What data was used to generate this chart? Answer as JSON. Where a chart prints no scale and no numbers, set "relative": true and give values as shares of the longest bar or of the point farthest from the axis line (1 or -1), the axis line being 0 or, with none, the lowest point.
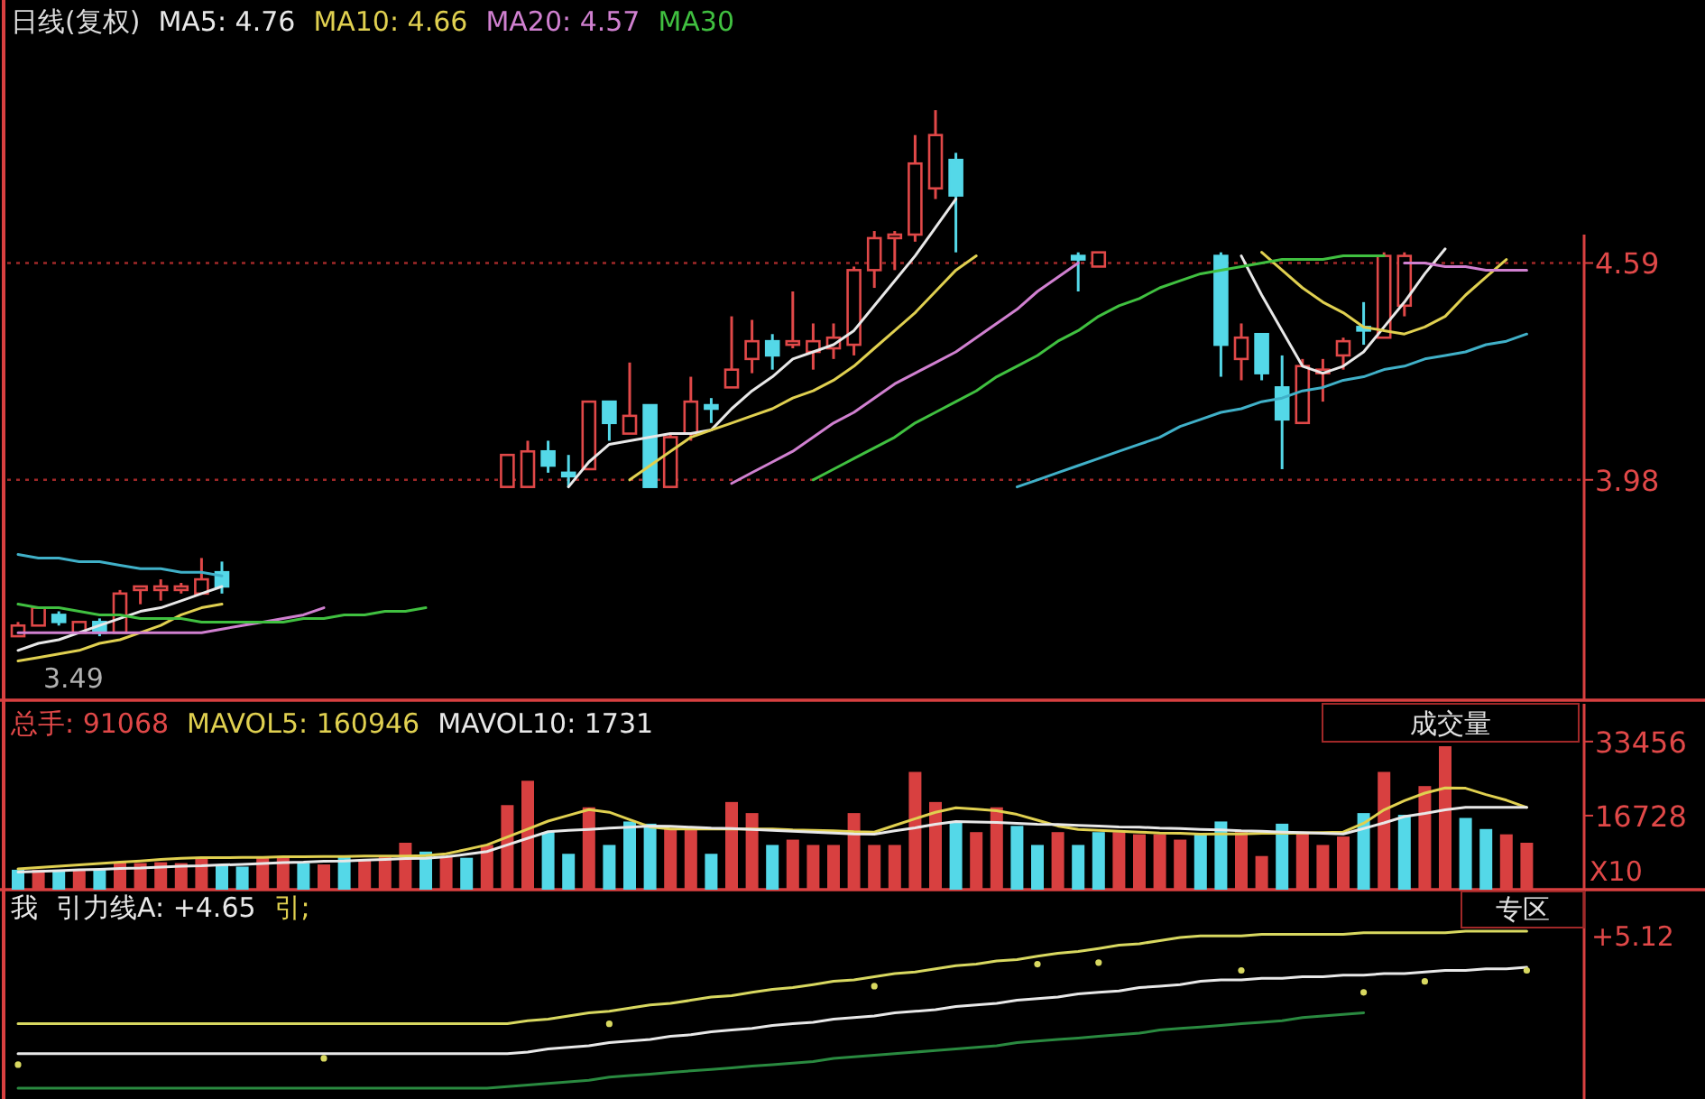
{
  "chart_data": [
    {
      "type": "candlestick",
      "title": "日线(复权)",
      "legend": "top left",
      "grid": "y",
      "ylim": [
        3.36,
        5.33
      ],
      "yticks": [
        3.98,
        4.59
      ],
      "annotations": [
        "3.49"
      ],
      "categories": [
        null,
        null,
        null,
        null,
        null,
        null,
        null,
        null,
        null,
        null,
        null,
        null,
        null,
        null,
        null,
        null,
        null,
        null,
        null,
        null,
        null,
        null,
        null,
        null,
        null,
        null,
        null,
        null,
        null,
        null,
        null,
        null,
        null,
        null,
        null,
        null,
        null,
        null,
        null,
        null,
        null,
        null,
        null,
        null,
        null,
        null,
        null,
        null,
        null,
        null,
        null,
        null,
        null,
        null,
        null,
        null,
        null,
        null,
        null,
        null,
        null,
        null,
        null,
        null,
        null,
        null,
        null,
        null,
        null,
        null,
        null,
        null,
        null,
        null,
        null
      ],
      "ohlc": [
        [
          3.54,
          3.58,
          3.54,
          3.57
        ],
        [
          3.57,
          3.62,
          3.57,
          3.62
        ],
        [
          3.6,
          3.61,
          3.57,
          3.58
        ],
        [
          3.55,
          3.58,
          3.55,
          3.58
        ],
        [
          3.58,
          3.59,
          3.54,
          3.55
        ],
        [
          3.55,
          3.67,
          3.55,
          3.66
        ],
        [
          3.67,
          3.68,
          3.63,
          3.68
        ],
        [
          3.67,
          3.7,
          3.64,
          3.68
        ],
        [
          3.67,
          3.69,
          3.66,
          3.68
        ],
        [
          3.66,
          3.76,
          3.66,
          3.7
        ],
        [
          3.72,
          3.75,
          3.66,
          3.68
        ],
        null,
        null,
        null,
        null,
        null,
        null,
        null,
        null,
        null,
        null,
        null,
        null,
        null,
        [
          3.96,
          4.05,
          3.96,
          4.05
        ],
        [
          3.96,
          4.09,
          3.96,
          4.06
        ],
        [
          4.06,
          4.09,
          4.0,
          4.02
        ],
        [
          4.0,
          4.05,
          3.96,
          3.99
        ],
        [
          4.01,
          4.2,
          4.01,
          4.2
        ],
        [
          4.2,
          4.2,
          4.09,
          4.14
        ],
        [
          4.11,
          4.31,
          4.11,
          4.16
        ],
        [
          4.19,
          4.19,
          3.96,
          3.96
        ],
        [
          3.96,
          4.11,
          3.96,
          4.1
        ],
        [
          4.11,
          4.27,
          4.09,
          4.2
        ],
        [
          4.19,
          4.21,
          4.14,
          4.18
        ],
        [
          4.24,
          4.44,
          4.24,
          4.29
        ],
        [
          4.32,
          4.43,
          4.28,
          4.37
        ],
        [
          4.37,
          4.39,
          4.29,
          4.33
        ],
        [
          4.36,
          4.51,
          4.35,
          4.37
        ],
        [
          4.34,
          4.42,
          4.29,
          4.37
        ],
        [
          4.35,
          4.42,
          4.32,
          4.38
        ],
        [
          4.36,
          4.58,
          4.33,
          4.57
        ],
        [
          4.57,
          4.68,
          4.52,
          4.66
        ],
        [
          4.66,
          4.68,
          4.57,
          4.67
        ],
        [
          4.67,
          4.95,
          4.65,
          4.87
        ],
        [
          4.8,
          5.02,
          4.77,
          4.95
        ],
        [
          4.88,
          4.9,
          4.62,
          4.78
        ],
        null,
        null,
        null,
        null,
        null,
        [
          4.61,
          4.62,
          4.51,
          4.6
        ],
        [
          4.58,
          4.62,
          4.58,
          4.62
        ],
        null,
        null,
        null,
        null,
        null,
        [
          4.61,
          4.62,
          4.27,
          4.36
        ],
        [
          4.32,
          4.42,
          4.26,
          4.38
        ],
        [
          4.39,
          4.39,
          4.26,
          4.28
        ],
        [
          4.24,
          4.33,
          4.01,
          4.15
        ],
        [
          4.14,
          4.32,
          4.14,
          4.3
        ],
        [
          4.28,
          4.32,
          4.2,
          4.29
        ],
        [
          4.33,
          4.38,
          4.29,
          4.37
        ],
        [
          4.41,
          4.48,
          4.36,
          4.4
        ],
        [
          4.38,
          4.62,
          4.38,
          4.61
        ],
        [
          4.47,
          4.62,
          4.44,
          4.61
        ],
        null,
        null,
        null,
        null,
        null,
        null
      ],
      "series": [
        {
          "name": "MA5: 4.76",
          "type": "line",
          "color": "#e8e8e8",
          "values": [
            3.5,
            3.52,
            3.53,
            3.55,
            3.57,
            3.59,
            3.61,
            3.62,
            3.64,
            3.66,
            3.68,
            null,
            null,
            null,
            null,
            null,
            null,
            null,
            null,
            null,
            null,
            null,
            null,
            null,
            null,
            null,
            null,
            3.96,
            4.03,
            4.08,
            4.09,
            4.1,
            4.11,
            4.11,
            4.12,
            4.18,
            4.23,
            4.27,
            4.32,
            4.34,
            4.36,
            4.4,
            4.47,
            4.54,
            4.61,
            4.69,
            4.77,
            null,
            null,
            null,
            null,
            null,
            null,
            null,
            null,
            null,
            null,
            null,
            null,
            null,
            4.61,
            4.5,
            4.4,
            4.3,
            4.28,
            4.3,
            4.34,
            4.41,
            4.48,
            4.56,
            4.63,
            null,
            null,
            null,
            null
          ]
        },
        {
          "name": "MA10: 4.66",
          "type": "line",
          "color": "#e0d050",
          "values": [
            3.47,
            3.48,
            3.49,
            3.5,
            3.52,
            3.53,
            3.55,
            3.57,
            3.6,
            3.62,
            3.63,
            null,
            null,
            null,
            null,
            null,
            null,
            null,
            null,
            null,
            null,
            null,
            null,
            null,
            null,
            null,
            null,
            null,
            null,
            null,
            3.98,
            4.02,
            4.06,
            4.1,
            4.12,
            4.14,
            4.16,
            4.18,
            4.21,
            4.23,
            4.26,
            4.3,
            4.35,
            4.4,
            4.45,
            4.51,
            4.57,
            4.61,
            null,
            null,
            null,
            null,
            null,
            null,
            null,
            null,
            null,
            null,
            null,
            null,
            null,
            4.62,
            4.57,
            4.52,
            4.48,
            4.45,
            4.41,
            4.4,
            4.39,
            4.41,
            4.44,
            4.5,
            4.55,
            4.6,
            null
          ]
        },
        {
          "name": "MA20: 4.57",
          "type": "line",
          "color": "#d080d0",
          "values": [
            3.55,
            3.55,
            3.55,
            3.55,
            3.55,
            3.55,
            3.55,
            3.55,
            3.55,
            3.55,
            3.56,
            3.57,
            3.58,
            3.59,
            3.6,
            3.62,
            null,
            null,
            null,
            null,
            null,
            null,
            null,
            null,
            null,
            null,
            null,
            null,
            null,
            null,
            null,
            null,
            null,
            null,
            null,
            3.97,
            4.0,
            4.03,
            4.06,
            4.1,
            4.14,
            4.17,
            4.21,
            4.25,
            4.28,
            4.31,
            4.34,
            4.38,
            4.42,
            4.46,
            4.51,
            4.55,
            4.59,
            null,
            null,
            null,
            null,
            null,
            null,
            null,
            null,
            null,
            null,
            null,
            null,
            null,
            null,
            null,
            4.59,
            4.59,
            4.58,
            4.58,
            4.57,
            4.57,
            4.57
          ]
        },
        {
          "name": "MA30",
          "type": "line",
          "color": "#40c040",
          "values": [
            3.63,
            3.62,
            3.62,
            3.61,
            3.6,
            3.6,
            3.59,
            3.59,
            3.59,
            3.58,
            3.58,
            3.58,
            3.58,
            3.58,
            3.59,
            3.59,
            3.6,
            3.6,
            3.61,
            3.61,
            3.62,
            null,
            null,
            null,
            null,
            null,
            null,
            null,
            null,
            null,
            null,
            null,
            null,
            null,
            null,
            null,
            null,
            null,
            null,
            3.98,
            4.01,
            4.04,
            4.07,
            4.1,
            4.14,
            4.17,
            4.2,
            4.23,
            4.27,
            4.3,
            4.33,
            4.37,
            4.4,
            4.44,
            4.47,
            4.49,
            4.52,
            4.54,
            4.56,
            4.57,
            4.58,
            4.59,
            4.6,
            4.6,
            4.6,
            4.61,
            4.61,
            4.61,
            null,
            null,
            null,
            null,
            null,
            null,
            null
          ]
        },
        {
          "type": "line",
          "color": "#40b0c8",
          "values": [
            3.77,
            3.76,
            3.76,
            3.75,
            3.75,
            3.74,
            3.73,
            3.73,
            3.72,
            3.72,
            3.71,
            null,
            null,
            null,
            null,
            null,
            null,
            null,
            null,
            null,
            null,
            null,
            null,
            null,
            null,
            null,
            null,
            null,
            null,
            null,
            null,
            null,
            null,
            null,
            null,
            null,
            null,
            null,
            null,
            null,
            null,
            null,
            null,
            null,
            null,
            null,
            null,
            null,
            null,
            3.96,
            3.98,
            4.0,
            4.02,
            4.04,
            4.06,
            4.08,
            4.1,
            4.13,
            4.15,
            4.17,
            4.18,
            4.2,
            4.21,
            4.23,
            4.24,
            4.26,
            4.27,
            4.29,
            4.3,
            4.32,
            4.33,
            4.34,
            4.36,
            4.37,
            4.39
          ]
        }
      ]
    },
    {
      "type": "bar",
      "legend": "top left",
      "ylim": [
        0,
        42800
      ],
      "yticks": [
        16728,
        33456
      ],
      "annotations": [
        "总手: 91068",
        "成交量",
        "X10"
      ],
      "categories": [
        null,
        null,
        null,
        null,
        null,
        null,
        null,
        null,
        null,
        null,
        null,
        null,
        null,
        null,
        null,
        null,
        null,
        null,
        null,
        null,
        null,
        null,
        null,
        null,
        null,
        null,
        null,
        null,
        null,
        null,
        null,
        null,
        null,
        null,
        null,
        null,
        null,
        null,
        null,
        null,
        null,
        null,
        null,
        null,
        null,
        null,
        null,
        null,
        null,
        null,
        null,
        null,
        null,
        null,
        null,
        null,
        null,
        null,
        null,
        null,
        null,
        null,
        null,
        null,
        null,
        null,
        null,
        null,
        null,
        null,
        null,
        null,
        null,
        null,
        null
      ],
      "series": [
        {
          "values": [
            4500,
            4500,
            4500,
            4500,
            4500,
            6200,
            6000,
            6200,
            6000,
            7200,
            5700,
            5200,
            7200,
            7200,
            6000,
            5700,
            7600,
            6700,
            7600,
            10600,
            8600,
            7600,
            7200,
            10100,
            19100,
            24600,
            13000,
            8100,
            18600,
            10100,
            15400,
            14900,
            13700,
            13700,
            8100,
            19800,
            17300,
            10100,
            11300,
            10100,
            10100,
            17300,
            10100,
            10100,
            26600,
            19800,
            15400,
            13000,
            18600,
            14400,
            10100,
            13000,
            10100,
            13000,
            13000,
            12500,
            12500,
            11300,
            12500,
            15400,
            13000,
            7600,
            14900,
            13000,
            10100,
            12000,
            17300,
            26600,
            16900,
            23400,
            32400,
            16200,
            13700,
            12500,
            10600
          ],
          "colors": [
            "#54d8e8",
            "#d84040",
            "#54d8e8",
            "#d84040",
            "#54d8e8",
            "#d84040",
            "#d84040",
            "#d84040",
            "#d84040",
            "#d84040",
            "#54d8e8",
            "#54d8e8",
            "#d84040",
            "#d84040",
            "#54d8e8",
            "#d84040",
            "#54d8e8",
            "#d84040",
            "#d84040",
            "#d84040",
            "#54d8e8",
            "#d84040",
            "#54d8e8",
            "#d84040",
            "#d84040",
            "#d84040",
            "#54d8e8",
            "#54d8e8",
            "#d84040",
            "#54d8e8",
            "#54d8e8",
            "#54d8e8",
            "#d84040",
            "#d84040",
            "#54d8e8",
            "#d84040",
            "#d84040",
            "#54d8e8",
            "#d84040",
            "#d84040",
            "#d84040",
            "#d84040",
            "#d84040",
            "#d84040",
            "#d84040",
            "#d84040",
            "#54d8e8",
            "#d84040",
            "#d84040",
            "#54d8e8",
            "#54d8e8",
            "#d84040",
            "#54d8e8",
            "#54d8e8",
            "#d84040",
            "#d84040",
            "#d84040",
            "#d84040",
            "#54d8e8",
            "#54d8e8",
            "#d84040",
            "#d84040",
            "#54d8e8",
            "#d84040",
            "#d84040",
            "#d84040",
            "#54d8e8",
            "#d84040",
            "#54d8e8",
            "#d84040",
            "#d84040",
            "#54d8e8",
            "#54d8e8",
            "#d84040",
            "#d84040"
          ]
        },
        {
          "name": "MAVOL5: 160946",
          "type": "line",
          "color": "#e0d050",
          "values": [
            4700,
            5000,
            5300,
            5600,
            5900,
            6200,
            6500,
            6800,
            7100,
            7200,
            7200,
            7300,
            7300,
            7400,
            7400,
            7500,
            7500,
            7600,
            7600,
            7600,
            7700,
            8100,
            9100,
            10100,
            11900,
            13700,
            15500,
            16800,
            18100,
            17500,
            15800,
            14200,
            13700,
            13700,
            13700,
            13700,
            13700,
            13700,
            13500,
            13400,
            13300,
            13100,
            13000,
            14500,
            16000,
            17500,
            18500,
            18200,
            17800,
            17000,
            15700,
            14400,
            13600,
            13400,
            13200,
            13000,
            12800,
            12700,
            12500,
            12600,
            12600,
            12700,
            12700,
            12800,
            12900,
            13000,
            15000,
            18000,
            20100,
            21800,
            23000,
            22900,
            21500,
            20200,
            18600
          ]
        },
        {
          "name": "MAVOL10: 1731",
          "type": "line",
          "color": "#e8e8e8",
          "values": [
            4000,
            4100,
            4300,
            4500,
            4600,
            4800,
            4900,
            5100,
            5300,
            5400,
            5600,
            5700,
            5900,
            6100,
            6200,
            6400,
            6500,
            6700,
            6800,
            7000,
            7100,
            7400,
            8000,
            8600,
            10100,
            11600,
            13100,
            13400,
            13600,
            13900,
            14100,
            14400,
            14300,
            14100,
            13900,
            13800,
            13600,
            13400,
            13200,
            13000,
            12800,
            12600,
            12500,
            13300,
            14000,
            14800,
            15400,
            15300,
            15200,
            15000,
            14800,
            14700,
            14500,
            14400,
            14200,
            14100,
            13900,
            13800,
            13600,
            13500,
            13300,
            13200,
            13000,
            12900,
            12700,
            12600,
            13800,
            15100,
            16500,
            17200,
            18000,
            18600,
            18600,
            18600,
            18600
          ]
        }
      ]
    },
    {
      "type": "line",
      "relative": true,
      "annotations": [
        "我",
        "引力线A: +4.65",
        "引;",
        "专区",
        "+5.12"
      ],
      "categories": [
        null,
        null,
        null,
        null,
        null,
        null,
        null,
        null,
        null,
        null,
        null,
        null,
        null,
        null,
        null,
        null,
        null,
        null,
        null,
        null,
        null,
        null,
        null,
        null,
        null,
        null,
        null,
        null,
        null,
        null,
        null,
        null,
        null,
        null,
        null,
        null,
        null,
        null,
        null,
        null,
        null,
        null,
        null,
        null,
        null,
        null,
        null,
        null,
        null,
        null,
        null,
        null,
        null,
        null,
        null,
        null,
        null,
        null,
        null,
        null,
        null,
        null,
        null,
        null,
        null,
        null,
        null,
        null,
        null,
        null,
        null,
        null,
        null,
        null,
        null
      ],
      "series": [
        {
          "color": "#d8d860",
          "values": [
            0.41,
            0.41,
            0.41,
            0.41,
            0.41,
            0.41,
            0.41,
            0.41,
            0.41,
            0.41,
            0.41,
            0.41,
            0.41,
            0.41,
            0.41,
            0.41,
            0.41,
            0.41,
            0.41,
            0.41,
            0.41,
            0.41,
            0.41,
            0.41,
            0.41,
            0.43,
            0.44,
            0.46,
            0.48,
            0.49,
            0.51,
            0.53,
            0.54,
            0.56,
            0.58,
            0.59,
            0.61,
            0.63,
            0.64,
            0.66,
            0.68,
            0.69,
            0.71,
            0.73,
            0.74,
            0.76,
            0.78,
            0.79,
            0.81,
            0.82,
            0.84,
            0.86,
            0.87,
            0.89,
            0.91,
            0.92,
            0.94,
            0.96,
            0.97,
            0.97,
            0.97,
            0.98,
            0.98,
            0.98,
            0.98,
            0.98,
            0.99,
            0.99,
            0.99,
            0.99,
            0.99,
            1.0,
            1.0,
            1.0,
            1.0
          ]
        },
        {
          "color": "#e8e8e8",
          "values": [
            0.22,
            0.22,
            0.22,
            0.22,
            0.22,
            0.22,
            0.22,
            0.22,
            0.22,
            0.22,
            0.22,
            0.22,
            0.22,
            0.22,
            0.22,
            0.22,
            0.22,
            0.22,
            0.22,
            0.22,
            0.22,
            0.22,
            0.22,
            0.22,
            0.22,
            0.23,
            0.25,
            0.26,
            0.27,
            0.29,
            0.3,
            0.31,
            0.33,
            0.34,
            0.36,
            0.37,
            0.38,
            0.4,
            0.41,
            0.42,
            0.44,
            0.45,
            0.46,
            0.48,
            0.49,
            0.5,
            0.52,
            0.53,
            0.54,
            0.56,
            0.57,
            0.58,
            0.6,
            0.61,
            0.62,
            0.64,
            0.65,
            0.66,
            0.68,
            0.69,
            0.69,
            0.7,
            0.7,
            0.71,
            0.71,
            0.72,
            0.72,
            0.73,
            0.73,
            0.74,
            0.75,
            0.75,
            0.76,
            0.76,
            0.77
          ]
        },
        {
          "color": "#2a8a40",
          "values": [
            0,
            0,
            0,
            0,
            0,
            0,
            0,
            0,
            0,
            0,
            0,
            0,
            0,
            0,
            0,
            0,
            0,
            0,
            0,
            0,
            0,
            0,
            0,
            0,
            0.01,
            0.02,
            0.03,
            0.04,
            0.05,
            0.07,
            0.08,
            0.09,
            0.1,
            0.11,
            0.12,
            0.13,
            0.14,
            0.15,
            0.16,
            0.17,
            0.19,
            0.2,
            0.21,
            0.22,
            0.23,
            0.24,
            0.25,
            0.26,
            0.27,
            0.29,
            0.3,
            0.31,
            0.32,
            0.33,
            0.34,
            0.35,
            0.37,
            0.38,
            0.39,
            0.4,
            0.41,
            0.42,
            0.43,
            0.45,
            0.46,
            0.47,
            0.48,
            null,
            null,
            null,
            null,
            null,
            null,
            null,
            null
          ]
        },
        {
          "type": "scatter",
          "marker": "circle",
          "color": "#d8d860",
          "values": [
            0.15,
            null,
            null,
            null,
            null,
            null,
            null,
            null,
            null,
            null,
            null,
            null,
            null,
            null,
            null,
            0.19,
            null,
            null,
            null,
            null,
            null,
            null,
            null,
            null,
            null,
            null,
            null,
            null,
            null,
            0.41,
            null,
            null,
            null,
            null,
            null,
            null,
            null,
            null,
            null,
            null,
            null,
            null,
            0.65,
            null,
            null,
            null,
            null,
            null,
            null,
            null,
            0.79,
            null,
            null,
            0.8,
            null,
            null,
            null,
            null,
            null,
            null,
            0.75,
            null,
            null,
            null,
            null,
            null,
            0.61,
            null,
            null,
            0.68,
            null,
            null,
            null,
            null,
            0.75
          ]
        }
      ]
    }
  ]
}
